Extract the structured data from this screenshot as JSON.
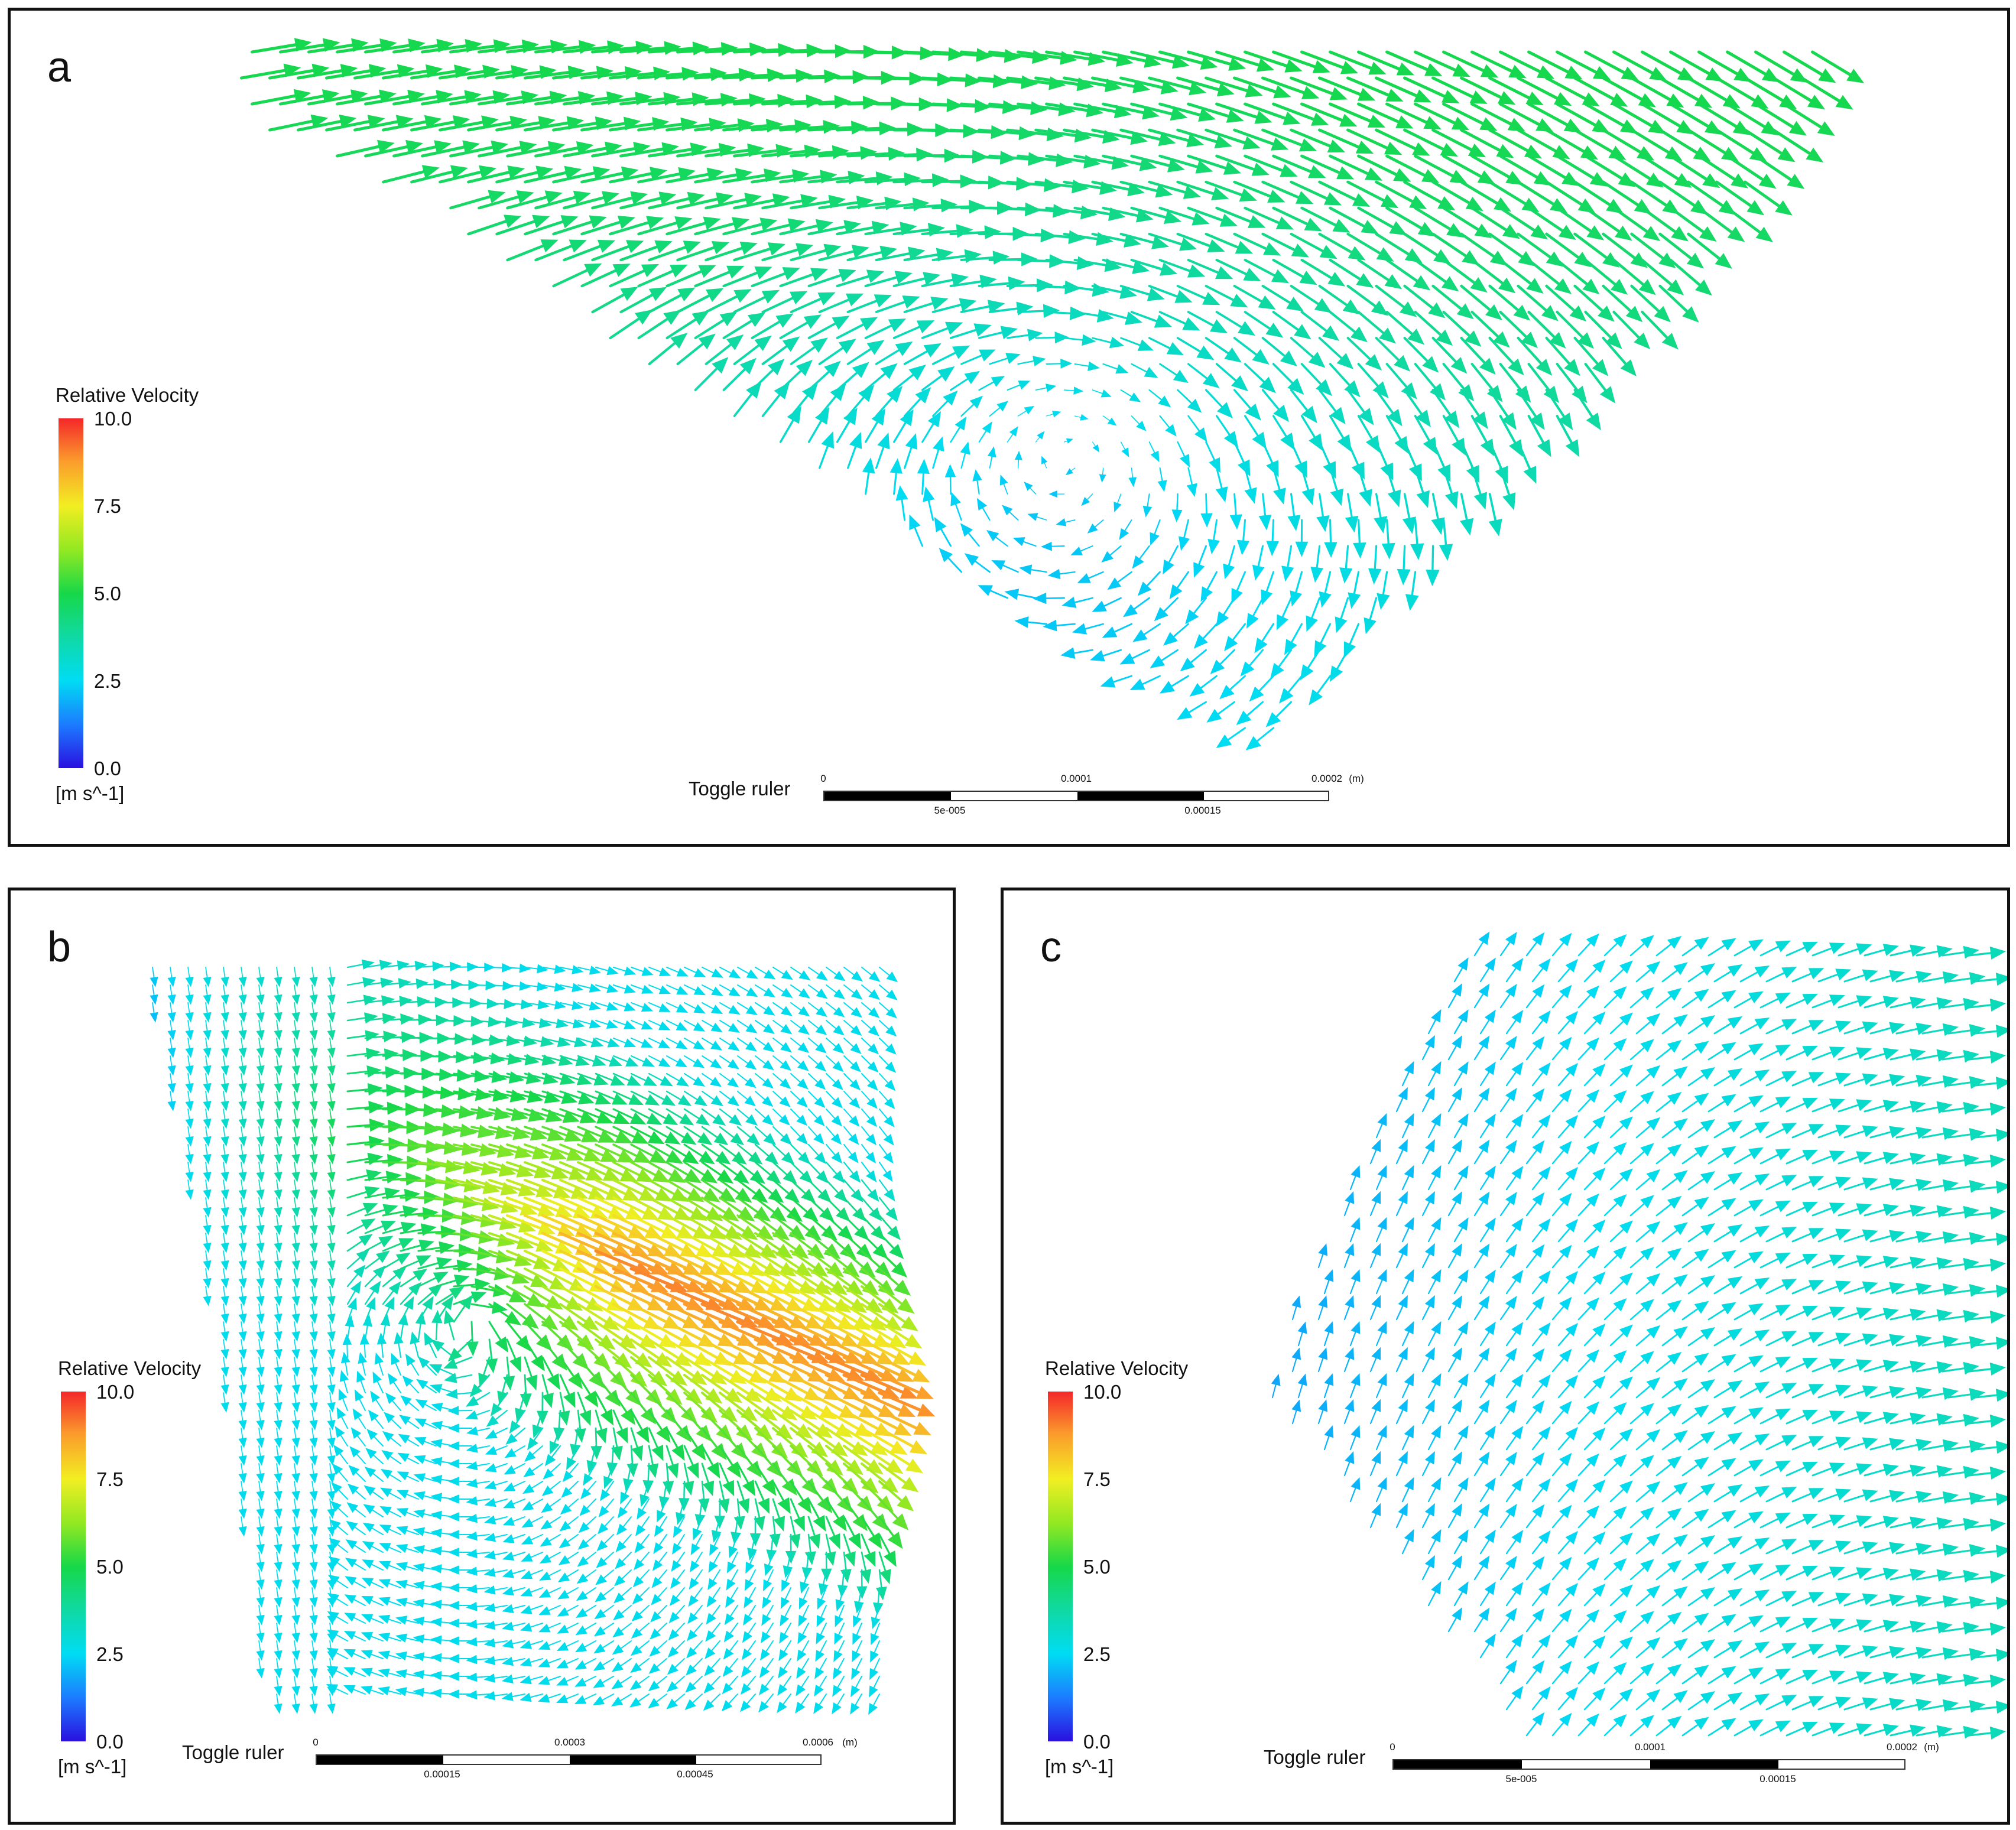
{
  "panels": [
    {
      "letter": "a",
      "legend": {
        "title": "Relative Velocity",
        "ticks": [
          "10.0",
          "7.5",
          "5.0",
          "2.5",
          "0.0"
        ],
        "unit": "[m s^-1]"
      },
      "ruler": {
        "label": "Toggle ruler",
        "top_ticks": [
          "0",
          "0.0001",
          "0.0002"
        ],
        "top_unit": "(m)",
        "bottom_ticks": [
          "5e-005",
          "0.00015"
        ]
      },
      "field": {
        "description_color": "cyan-blue recirculation vortex"
      }
    },
    {
      "letter": "b",
      "legend": {
        "title": "Relative Velocity",
        "ticks": [
          "10.0",
          "7.5",
          "5.0",
          "2.5",
          "0.0"
        ],
        "unit": "[m s^-1]"
      },
      "ruler": {
        "label": "Toggle ruler",
        "top_ticks": [
          "0",
          "0.0003",
          "0.0006"
        ],
        "top_unit": "(m)",
        "bottom_ticks": [
          "0.00015",
          "0.00045"
        ]
      }
    },
    {
      "letter": "c",
      "legend": {
        "title": "Relative Velocity",
        "ticks": [
          "10.0",
          "7.5",
          "5.0",
          "2.5",
          "0.0"
        ],
        "unit": "[m s^-1]"
      },
      "ruler": {
        "label": "Toggle ruler",
        "top_ticks": [
          "0",
          "0.0001",
          "0.0002"
        ],
        "top_unit": "(m)",
        "bottom_ticks": [
          "5e-005",
          "0.00015"
        ]
      }
    }
  ],
  "colormap": {
    "min": 0.0,
    "max": 10.0,
    "stops": [
      "#2a10e0",
      "#1c78ff",
      "#00dcf4",
      "#10d9a0",
      "#17d848",
      "#8fe822",
      "#f2ee22",
      "#fb9a2c",
      "#f4262a"
    ]
  }
}
